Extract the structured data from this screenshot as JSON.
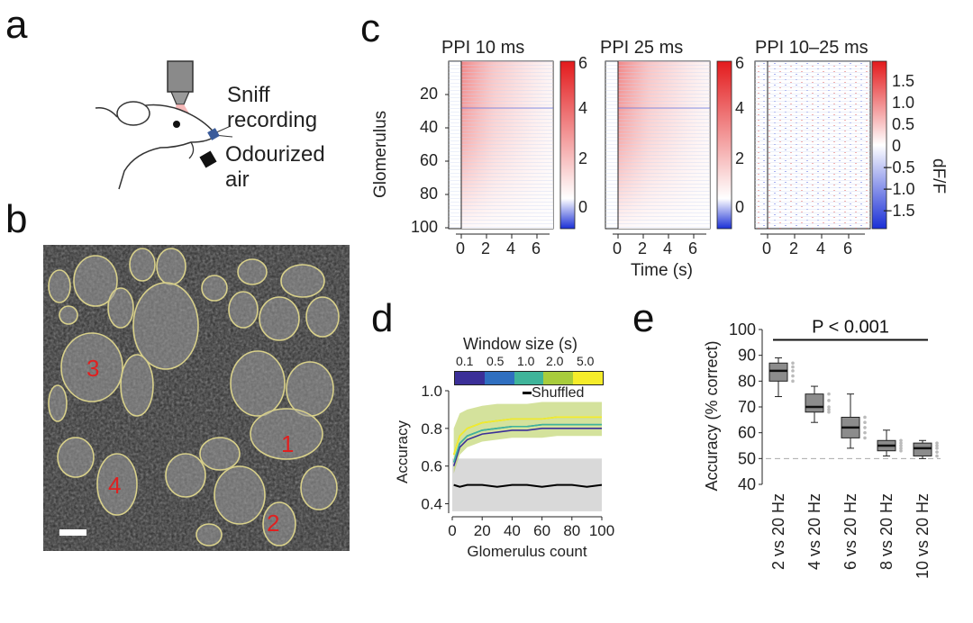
{
  "panels": {
    "a": {
      "letter": "a",
      "sniff_label": [
        "Sniff",
        "recording"
      ],
      "odour_label": [
        "Odourized",
        "air"
      ]
    },
    "b": {
      "letter": "b",
      "regions": [
        "3",
        "1",
        "4",
        "2"
      ]
    },
    "c": {
      "letter": "c",
      "heatmaps": [
        {
          "title": "PPI 10 ms",
          "colorbar_ticks": [
            "6",
            "4",
            "2",
            "0"
          ]
        },
        {
          "title": "PPI 25 ms",
          "colorbar_ticks": [
            "6",
            "4",
            "2",
            "0"
          ]
        },
        {
          "title": "PPI 10–25 ms",
          "colorbar_ticks": [
            "1.5",
            "1.0",
            "0.5",
            "0",
            "−0.5",
            "−1.0",
            "−1.5"
          ]
        }
      ],
      "ylabel": "Glomerulus",
      "yticks": [
        "20",
        "40",
        "60",
        "80",
        "100"
      ],
      "xticks": [
        "0",
        "2",
        "4",
        "6"
      ],
      "xlabel": "Time (s)",
      "colorbar_label": "dF/F"
    },
    "d": {
      "letter": "d",
      "colorbar_title": "Window size (s)",
      "colorbar_ticks": [
        "0.1",
        "0.5",
        "1.0",
        "2.0",
        "5.0"
      ],
      "colors": [
        "#3b2f98",
        "#2f6fc0",
        "#3fb49a",
        "#a8cc3c",
        "#f5ec2a"
      ],
      "legend_shuffled": "Shuffled"
    },
    "e": {
      "letter": "e",
      "annotation": "P < 0.001"
    }
  },
  "chart_data": [
    {
      "type": "line",
      "panel": "d",
      "xlabel": "Glomerulus count",
      "ylabel": "Accuracy",
      "xlim": [
        0,
        100
      ],
      "ylim": [
        0.35,
        1.0
      ],
      "xticks": [
        0,
        20,
        40,
        60,
        80,
        100
      ],
      "yticks": [
        0.4,
        0.6,
        0.8,
        1.0
      ],
      "ytick_labels": [
        "0.4",
        "0.6",
        "0.8",
        "1.0"
      ],
      "x": [
        1,
        5,
        10,
        20,
        30,
        40,
        50,
        60,
        70,
        80,
        90,
        100
      ],
      "series": [
        {
          "name": "0.1",
          "values": [
            0.6,
            0.7,
            0.74,
            0.77,
            0.78,
            0.79,
            0.79,
            0.8,
            0.8,
            0.8,
            0.8,
            0.8
          ]
        },
        {
          "name": "0.5",
          "values": [
            0.62,
            0.72,
            0.76,
            0.79,
            0.8,
            0.81,
            0.81,
            0.82,
            0.82,
            0.82,
            0.82,
            0.82
          ]
        },
        {
          "name": "1.0",
          "values": [
            0.62,
            0.72,
            0.76,
            0.79,
            0.8,
            0.81,
            0.81,
            0.82,
            0.82,
            0.82,
            0.82,
            0.82
          ]
        },
        {
          "name": "2.0",
          "values": [
            0.66,
            0.76,
            0.8,
            0.83,
            0.84,
            0.85,
            0.85,
            0.85,
            0.86,
            0.86,
            0.86,
            0.86
          ]
        },
        {
          "name": "5.0",
          "values": [
            0.66,
            0.76,
            0.8,
            0.83,
            0.84,
            0.85,
            0.85,
            0.85,
            0.86,
            0.86,
            0.86,
            0.86
          ]
        },
        {
          "name": "Shuffled",
          "values": [
            0.5,
            0.49,
            0.5,
            0.5,
            0.49,
            0.5,
            0.5,
            0.49,
            0.5,
            0.5,
            0.49,
            0.5
          ]
        }
      ],
      "band_upper": [
        0.8,
        0.88,
        0.9,
        0.92,
        0.93,
        0.93,
        0.93,
        0.94,
        0.94,
        0.94,
        0.94,
        0.94
      ],
      "band_lower": [
        0.56,
        0.66,
        0.7,
        0.73,
        0.74,
        0.75,
        0.75,
        0.75,
        0.76,
        0.76,
        0.76,
        0.76
      ],
      "shuffled_band": [
        0.36,
        0.64
      ]
    },
    {
      "type": "box",
      "panel": "e",
      "ylabel": "Accuracy (% correct)",
      "ylim": [
        40,
        100
      ],
      "yticks": [
        40,
        50,
        60,
        70,
        80,
        90,
        100
      ],
      "ytick_labels": [
        "40",
        "50",
        "60",
        "70",
        "80",
        "90",
        "100"
      ],
      "categories": [
        "2 vs 20 Hz",
        "4 vs 20 Hz",
        "6 vs 20 Hz",
        "8 vs 20 Hz",
        "10 vs 20 Hz"
      ],
      "boxes": [
        {
          "min": 74,
          "q1": 80,
          "median": 84,
          "q3": 87,
          "max": 89
        },
        {
          "min": 64,
          "q1": 68,
          "median": 70,
          "q3": 75,
          "max": 78
        },
        {
          "min": 54,
          "q1": 58,
          "median": 62,
          "q3": 66,
          "max": 75
        },
        {
          "min": 51,
          "q1": 53,
          "median": 55,
          "q3": 57,
          "max": 61
        },
        {
          "min": 50,
          "q1": 51,
          "median": 54,
          "q3": 56,
          "max": 57
        }
      ],
      "chance_level": 50
    }
  ]
}
